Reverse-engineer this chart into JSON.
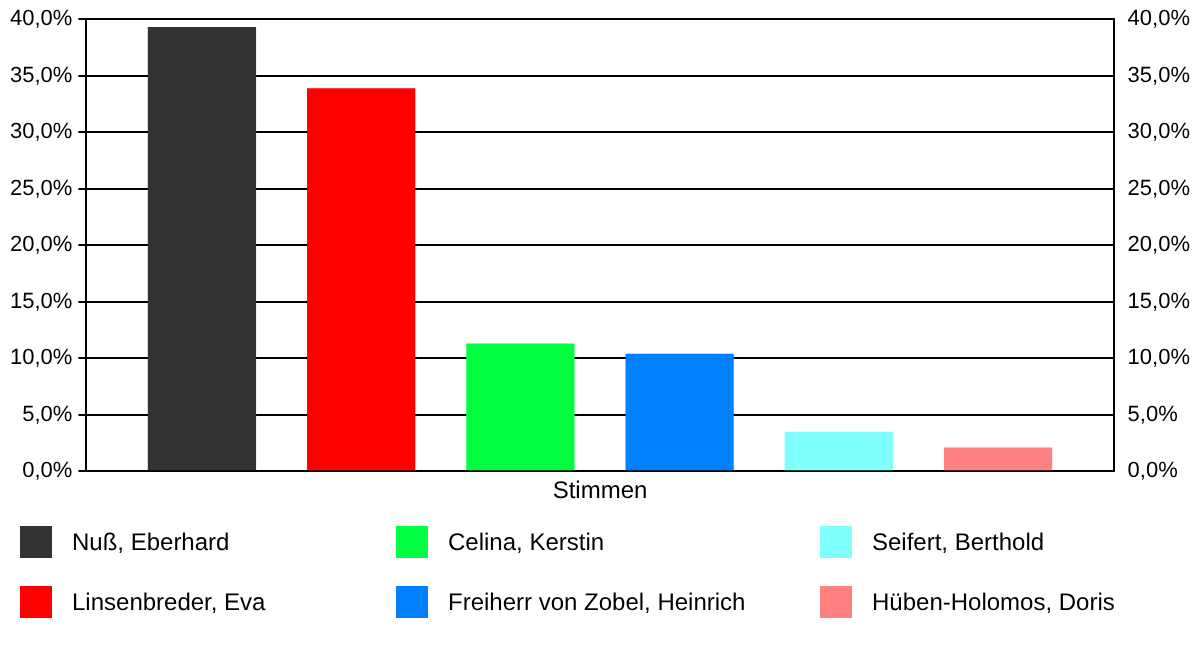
{
  "chart_data": {
    "type": "bar",
    "categories": [
      "Stimmen"
    ],
    "series": [
      {
        "name": "Nuß, Eberhard",
        "color": "#333333",
        "values": [
          39.3
        ]
      },
      {
        "name": "Linsenbreder, Eva",
        "color": "#ff0000",
        "values": [
          33.9
        ]
      },
      {
        "name": "Celina, Kerstin",
        "color": "#00ff40",
        "values": [
          11.3
        ]
      },
      {
        "name": "Freiherr von Zobel, Heinrich",
        "color": "#0080ff",
        "values": [
          10.4
        ]
      },
      {
        "name": "Seifert, Berthold",
        "color": "#80ffff",
        "values": [
          3.5
        ]
      },
      {
        "name": "Hüben-Holomos, Doris",
        "color": "#ff8080",
        "values": [
          2.1
        ]
      }
    ],
    "ylim": [
      0,
      40
    ],
    "yticks": [
      {
        "value": 0,
        "label": "0,0%"
      },
      {
        "value": 5,
        "label": "5,0%"
      },
      {
        "value": 10,
        "label": "10,0%"
      },
      {
        "value": 15,
        "label": "15,0%"
      },
      {
        "value": 20,
        "label": "20,0%"
      },
      {
        "value": 25,
        "label": "25,0%"
      },
      {
        "value": 30,
        "label": "30,0%"
      },
      {
        "value": 35,
        "label": "35,0%"
      },
      {
        "value": 40,
        "label": "40,0%"
      }
    ],
    "grid": "y",
    "legend": "bottom"
  }
}
